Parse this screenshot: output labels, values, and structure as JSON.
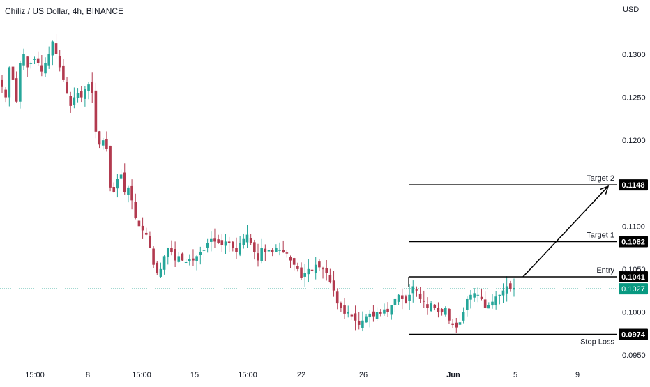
{
  "header": {
    "title": "Chiliz / US Dollar, 4h, BINANCE",
    "currency": "USD"
  },
  "colors": {
    "up": "#26a69a",
    "down": "#b23a4f",
    "current_price_bg": "#089981",
    "level_bg": "#000000",
    "axis_text": "#131722",
    "current_line": "#089981"
  },
  "chart_data": {
    "type": "candlestick",
    "title": "Chiliz / US Dollar, 4h, BINANCE",
    "y_axis": {
      "ticks": [
        0.13,
        0.125,
        0.12,
        0.11,
        0.105,
        0.1,
        0.095
      ],
      "tick_labels": [
        "0.1300",
        "0.1250",
        "0.1200",
        "0.1100",
        "0.1050",
        "0.1000",
        "0.0950"
      ],
      "range": [
        0.0925,
        0.1355
      ]
    },
    "x_axis": {
      "tick_labels": [
        "15:00",
        "8",
        "15:00",
        "15",
        "15:00",
        "22",
        "26",
        "Jun",
        "5",
        "9"
      ]
    },
    "current_price": 0.1027,
    "current_price_label": "0.1027",
    "levels": [
      {
        "name": "Target 2",
        "price": 0.1148,
        "label": "0.1148"
      },
      {
        "name": "Target 1",
        "price": 0.1082,
        "label": "0.1082"
      },
      {
        "name": "Entry",
        "price": 0.1041,
        "label": "0.1041"
      },
      {
        "name": "Stop Loss",
        "price": 0.0974,
        "label": "0.0974"
      }
    ],
    "projection_arrow": {
      "from_price": 0.1041,
      "to_price": 0.1148
    },
    "close_path": [
      0.1262,
      0.125,
      0.1285,
      0.127,
      0.1245,
      0.129,
      0.13,
      0.1285,
      0.129,
      0.1295,
      0.129,
      0.128,
      0.129,
      0.13,
      0.1315,
      0.13,
      0.1285,
      0.127,
      0.1255,
      0.124,
      0.125,
      0.1255,
      0.125,
      0.126,
      0.1265,
      0.1255,
      0.121,
      0.1195,
      0.12,
      0.119,
      0.1145,
      0.114,
      0.1155,
      0.116,
      0.114,
      0.1145,
      0.113,
      0.111,
      0.11,
      0.1095,
      0.109,
      0.1075,
      0.1055,
      0.1045,
      0.105,
      0.1065,
      0.1075,
      0.107,
      0.106,
      0.1065,
      0.106,
      0.1058,
      0.1062,
      0.106,
      0.1065,
      0.107,
      0.1072,
      0.108,
      0.1085,
      0.1082,
      0.108,
      0.1078,
      0.1082,
      0.108,
      0.1075,
      0.107,
      0.108,
      0.1085,
      0.109,
      0.108,
      0.107,
      0.106,
      0.1075,
      0.107,
      0.1072,
      0.107,
      0.1075,
      0.1072,
      0.107,
      0.1068,
      0.106,
      0.1055,
      0.105,
      0.104,
      0.1045,
      0.105,
      0.1048,
      0.1055,
      0.1052,
      0.105,
      0.1045,
      0.1035,
      0.1025,
      0.101,
      0.1005,
      0.0998,
      0.1,
      0.0995,
      0.099,
      0.0985,
      0.099,
      0.0995,
      0.0998,
      0.0995,
      0.1,
      0.0998,
      0.1003,
      0.1,
      0.1008,
      0.1015,
      0.102,
      0.1015,
      0.101,
      0.102,
      0.103,
      0.1025,
      0.1015,
      0.1012,
      0.1005,
      0.101,
      0.1005,
      0.1,
      0.1,
      0.1005,
      0.099,
      0.0985,
      0.0982,
      0.0988,
      0.1,
      0.1015,
      0.102,
      0.1022,
      0.102,
      0.1015,
      0.1005,
      0.1008,
      0.1012,
      0.1018,
      0.102,
      0.1025,
      0.103,
      0.1027,
      0.1028
    ]
  }
}
